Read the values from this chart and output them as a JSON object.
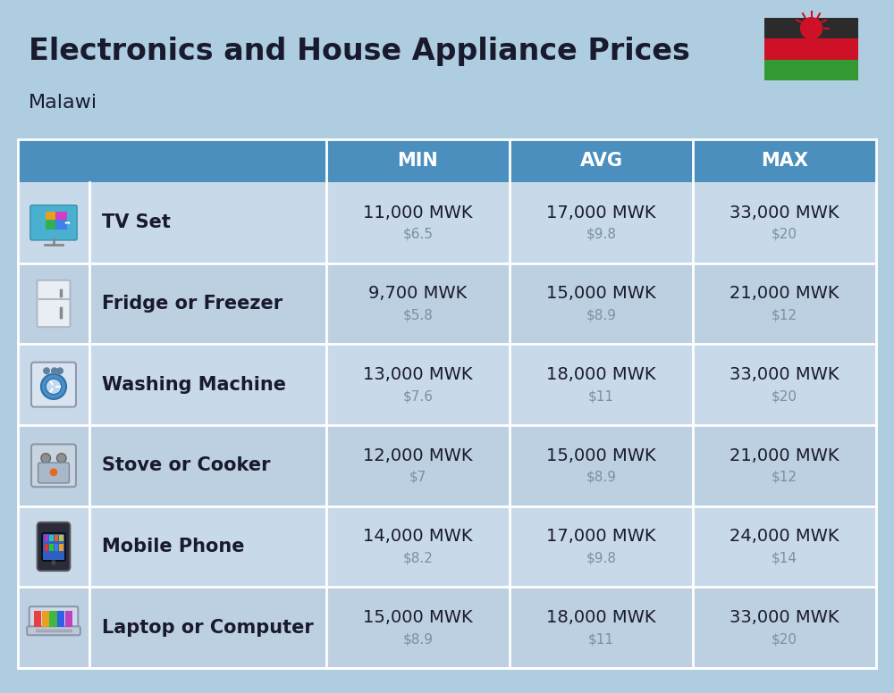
{
  "title": "Electronics and House Appliance Prices",
  "subtitle": "Malawi",
  "bg_color": "#aecde0",
  "header_color": "#4a8fbe",
  "header_text_color": "#ffffff",
  "row_colors": [
    "#c8daea",
    "#bdd0e2"
  ],
  "col_headers": [
    "MIN",
    "AVG",
    "MAX"
  ],
  "items": [
    {
      "name": "TV Set",
      "min_mwk": "11,000 MWK",
      "min_usd": "$6.5",
      "avg_mwk": "17,000 MWK",
      "avg_usd": "$9.8",
      "max_mwk": "33,000 MWK",
      "max_usd": "$20"
    },
    {
      "name": "Fridge or Freezer",
      "min_mwk": "9,700 MWK",
      "min_usd": "$5.8",
      "avg_mwk": "15,000 MWK",
      "avg_usd": "$8.9",
      "max_mwk": "21,000 MWK",
      "max_usd": "$12"
    },
    {
      "name": "Washing Machine",
      "min_mwk": "13,000 MWK",
      "min_usd": "$7.6",
      "avg_mwk": "18,000 MWK",
      "avg_usd": "$11",
      "max_mwk": "33,000 MWK",
      "max_usd": "$20"
    },
    {
      "name": "Stove or Cooker",
      "min_mwk": "12,000 MWK",
      "min_usd": "$7",
      "avg_mwk": "15,000 MWK",
      "avg_usd": "$8.9",
      "max_mwk": "21,000 MWK",
      "max_usd": "$12"
    },
    {
      "name": "Mobile Phone",
      "min_mwk": "14,000 MWK",
      "min_usd": "$8.2",
      "avg_mwk": "17,000 MWK",
      "avg_usd": "$9.8",
      "max_mwk": "24,000 MWK",
      "max_usd": "$14"
    },
    {
      "name": "Laptop or Computer",
      "min_mwk": "15,000 MWK",
      "min_usd": "$8.9",
      "avg_mwk": "18,000 MWK",
      "avg_usd": "$11",
      "max_mwk": "33,000 MWK",
      "max_usd": "$20"
    }
  ],
  "usd_color": "#7a8fa0",
  "text_color": "#1a1a2e",
  "title_fontsize": 24,
  "subtitle_fontsize": 16,
  "header_fontsize": 15,
  "name_fontsize": 15,
  "value_fontsize": 14,
  "usd_fontsize": 11
}
